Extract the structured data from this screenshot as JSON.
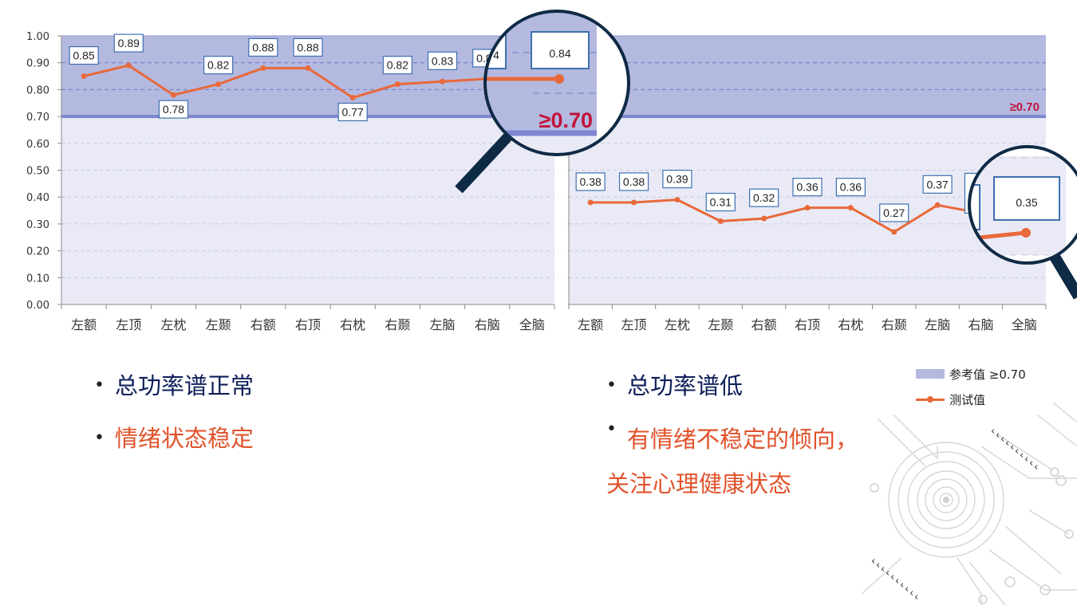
{
  "colors": {
    "reference_band": "#b4b9e0",
    "plot_background": "#e9eaf6",
    "series_line": "#e8693a",
    "reference_line": "#7f86d0",
    "reference_text": "#c0143c",
    "heading_navy": "#0f1f5a",
    "accent_orange": "#e0532b"
  },
  "chart_data": [
    {
      "type": "line",
      "categories": [
        "左额",
        "左顶",
        "左枕",
        "左颞",
        "右额",
        "右顶",
        "右枕",
        "右颞",
        "左脑",
        "右脑",
        "全脑"
      ],
      "series": [
        {
          "name": "测试值",
          "values": [
            0.85,
            0.89,
            0.78,
            0.82,
            0.88,
            0.88,
            0.77,
            0.82,
            0.83,
            0.84,
            0.84
          ]
        }
      ],
      "data_labels": [
        "0.85",
        "0.89",
        "0.78",
        "0.82",
        "0.88",
        "0.88",
        "0.77",
        "0.82",
        "0.83",
        "0.84",
        "0.84"
      ],
      "y_ticks": [
        "0.00",
        "0.10",
        "0.20",
        "0.30",
        "0.40",
        "0.50",
        "0.60",
        "0.70",
        "0.80",
        "0.90",
        "1.00"
      ],
      "ylim": [
        0,
        1
      ],
      "reference_band": [
        0.7,
        1.0
      ],
      "reference_label": "≥0.70",
      "magnifier": {
        "label": "0.84",
        "ref_label": "≥0.70",
        "clipped_text": "4"
      },
      "grid": true
    },
    {
      "type": "line",
      "categories": [
        "左额",
        "左顶",
        "左枕",
        "左颞",
        "右额",
        "右顶",
        "右枕",
        "右颞",
        "左脑",
        "右脑",
        "全脑"
      ],
      "series": [
        {
          "name": "测试值",
          "values": [
            0.38,
            0.38,
            0.39,
            0.31,
            0.32,
            0.36,
            0.36,
            0.27,
            0.37,
            0.34,
            0.35
          ]
        }
      ],
      "data_labels": [
        "0.38",
        "0.38",
        "0.39",
        "0.31",
        "0.32",
        "0.36",
        "0.36",
        "0.27",
        "0.37",
        "",
        ""
      ],
      "ylim": [
        0,
        1
      ],
      "reference_band": [
        0.7,
        1.0
      ],
      "reference_label": "≥0.70",
      "magnifier": {
        "label": "0.35"
      },
      "grid": true
    }
  ],
  "legend": {
    "reference_label": "参考值 ≥0.70",
    "series_label": "测试值"
  },
  "left_bullets": [
    "总功率谱正常",
    "情绪状态稳定"
  ],
  "right_bullets": [
    "总功率谱低",
    "有情绪不稳定的倾向，",
    "关注心理健康状态"
  ]
}
